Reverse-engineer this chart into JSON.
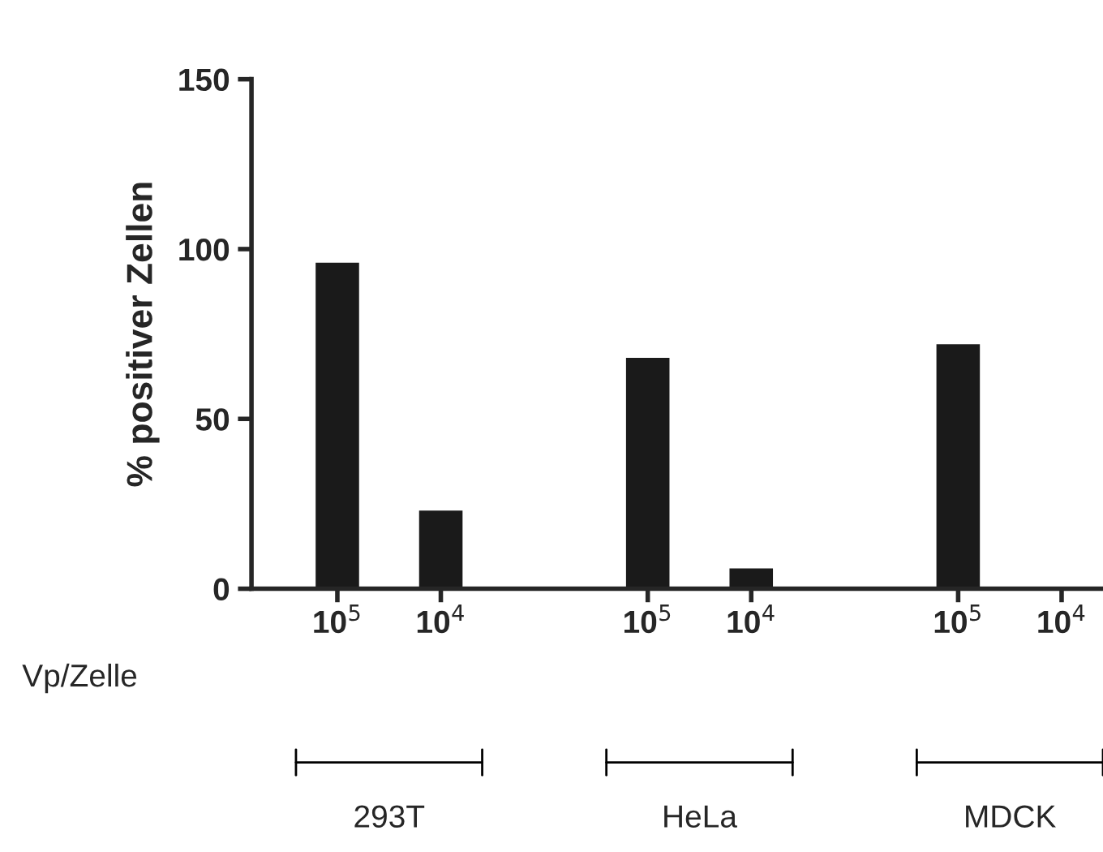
{
  "chart_data": {
    "type": "bar",
    "ylabel": "% positiver Zellen",
    "categories": [
      "10$^{5}$",
      "10$^{4}$",
      null,
      "10$^{5}$",
      "10$^{4}$",
      null,
      "10$^{5}$",
      "10$^{4}$"
    ],
    "values": [
      96,
      23,
      null,
      68,
      6,
      null,
      72,
      0
    ],
    "color": "#1a1a1a",
    "ylim": [
      0,
      150
    ],
    "yticks": [
      0,
      50,
      100,
      150
    ],
    "annotations": [
      "Vp/Zelle",
      "293T",
      "HeLa",
      "MDCK"
    ]
  }
}
